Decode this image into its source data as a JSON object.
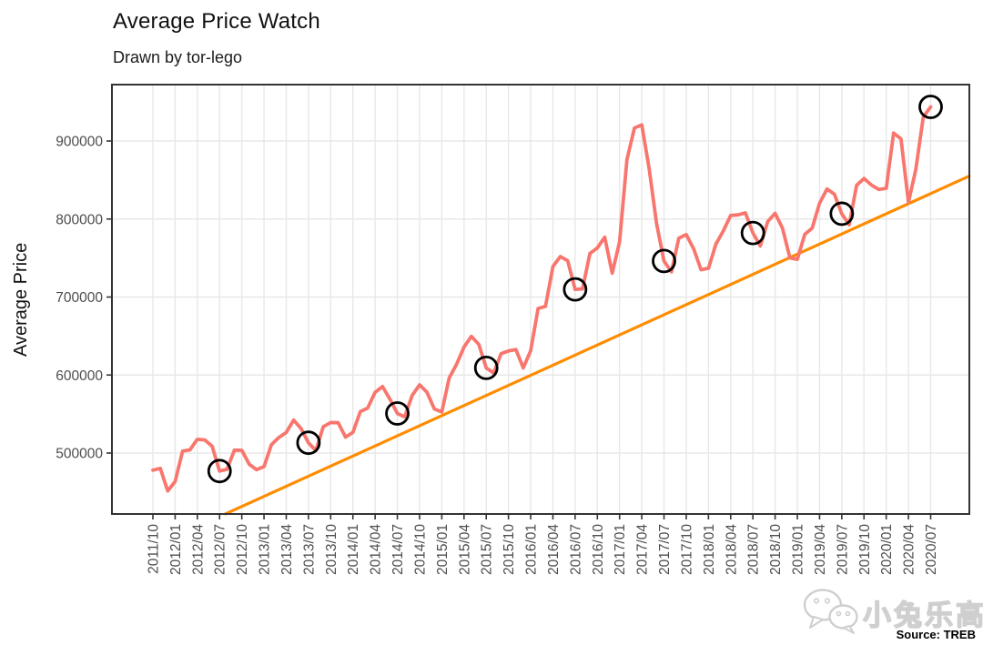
{
  "header": {
    "title": "Average Price Watch",
    "subtitle": "Drawn by tor-lego"
  },
  "y_axis_title": "Average Price",
  "caption": {
    "source": "Source: TREB"
  },
  "watermark": {
    "text": "小兔乐高",
    "icon": "wechat-icon"
  },
  "colors": {
    "price_line": "#F8766D",
    "trend_line": "#FF8C00",
    "highlight_circle": "#000000",
    "grid": "#E8E8E8",
    "panel_border": "#333333",
    "tick_label": "#4D4D4D",
    "tick_mark": "#333333"
  },
  "chart_data": {
    "type": "line",
    "title": "Average Price Watch",
    "subtitle": "Drawn by tor-lego",
    "xlabel": "",
    "ylabel": "Average Price",
    "x_unit": "month",
    "x_start": "2011/10",
    "x_end": "2020/07",
    "x_tick_labels": [
      "2011/10",
      "2012/01",
      "2012/04",
      "2012/07",
      "2012/10",
      "2013/01",
      "2013/04",
      "2013/07",
      "2013/10",
      "2014/01",
      "2014/04",
      "2014/07",
      "2014/10",
      "2015/01",
      "2015/04",
      "2015/07",
      "2015/10",
      "2016/01",
      "2016/04",
      "2016/07",
      "2016/10",
      "2017/01",
      "2017/04",
      "2017/07",
      "2017/10",
      "2018/01",
      "2018/04",
      "2018/07",
      "2018/10",
      "2019/01",
      "2019/04",
      "2019/07",
      "2019/10",
      "2020/01",
      "2020/04",
      "2020/07"
    ],
    "y_ticks": [
      500000,
      600000,
      700000,
      800000,
      900000
    ],
    "ylim": [
      425000,
      968000
    ],
    "grid": "major-only",
    "legend": "none",
    "series": [
      {
        "name": "Average Price",
        "color": "#F8766D",
        "start_month": "2011/10",
        "monthly_values": [
          478100,
          480400,
          451400,
          463500,
          502500,
          504100,
          517600,
          516800,
          508600,
          476900,
          479100,
          503700,
          503500,
          485700,
          478700,
          482600,
          510600,
          519900,
          526300,
          542200,
          531400,
          513200,
          503100,
          533800,
          539100,
          538900,
          520400,
          526500,
          553200,
          557700,
          577900,
          585200,
          569000,
          550700,
          546300,
          573700,
          587500,
          577900,
          556600,
          552600,
          596200,
          613900,
          635900,
          649600,
          639200,
          609200,
          602600,
          627400,
          630900,
          632700,
          609100,
          631100,
          685300,
          688000,
          739100,
          751900,
          746500,
          709800,
          710400,
          755800,
          763000,
          776700,
          730500,
          770700,
          876000,
          916600,
          920800,
          863900,
          793900,
          746200,
          732300,
          775500,
          780100,
          761800,
          735000,
          736800,
          767800,
          784600,
          804600,
          805300,
          807900,
          782100,
          765300,
          796800,
          807300,
          788300,
          750200,
          748300,
          780400,
          788300,
          820100,
          838500,
          831900,
          806800,
          792600,
          843100,
          852100,
          843600,
          837800,
          839400,
          910300,
          902700,
          821400,
          863600,
          930900,
          943700
        ]
      }
    ],
    "trend_line": {
      "name": "linear trend",
      "color": "#FF8C00",
      "start": {
        "month_index": 9.8,
        "value": 422000
      },
      "end": {
        "month_index": 110.2,
        "value": 855000
      }
    },
    "highlighted_points": {
      "marker": "open-circle",
      "color": "#000000",
      "months": [
        "2012/07",
        "2013/07",
        "2014/07",
        "2015/07",
        "2016/07",
        "2017/07",
        "2018/07",
        "2019/07",
        "2020/07"
      ],
      "values": [
        476900,
        513200,
        550700,
        609200,
        709800,
        746200,
        782100,
        806800,
        943700
      ]
    }
  }
}
